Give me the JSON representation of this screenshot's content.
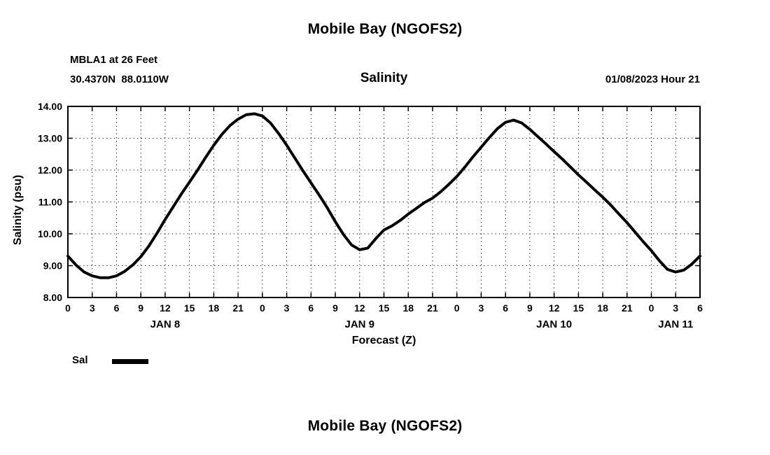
{
  "header": {
    "title": "Mobile Bay (NGOFS2)"
  },
  "footer": {
    "next_chart_title": "Mobile Bay (NGOFS2)"
  },
  "chart_data": {
    "type": "line",
    "title": "Salinity",
    "station": "MBLA1 at 26 Feet",
    "coords": "30.4370N  88.0110W",
    "timestamp": "01/08/2023 Hour 21",
    "xlabel": "Forecast (Z)",
    "ylabel": "Salinity (psu)",
    "xlim": [
      0,
      78
    ],
    "ylim": [
      8,
      14
    ],
    "grid": true,
    "legend_position": "bottom-left",
    "legend": [
      {
        "name": "Sal",
        "color": "#000000",
        "style": "thick-solid"
      }
    ],
    "xticks": [
      0,
      3,
      6,
      9,
      12,
      15,
      18,
      21,
      24,
      27,
      30,
      33,
      36,
      39,
      42,
      45,
      48,
      51,
      54,
      57,
      60,
      63,
      66,
      69,
      72,
      75,
      78
    ],
    "xtick_labels": [
      "0",
      "3",
      "6",
      "9",
      "12",
      "15",
      "18",
      "21",
      "0",
      "3",
      "6",
      "9",
      "12",
      "15",
      "18",
      "21",
      "0",
      "3",
      "6",
      "9",
      "12",
      "15",
      "18",
      "21",
      "0",
      "3",
      "6"
    ],
    "yticks": [
      8,
      9,
      10,
      11,
      12,
      13,
      14
    ],
    "ytick_labels": [
      "8.00",
      "9.00",
      "10.00",
      "11.00",
      "12.00",
      "13.00",
      "14.00"
    ],
    "day_labels": [
      {
        "x": 12,
        "label": "JAN 8"
      },
      {
        "x": 36,
        "label": "JAN 9"
      },
      {
        "x": 60,
        "label": "JAN 10"
      },
      {
        "x": 75,
        "label": "JAN 11"
      }
    ],
    "series": [
      {
        "name": "Sal",
        "color": "#000000",
        "x": [
          0,
          1,
          2,
          3,
          4,
          5,
          6,
          7,
          8,
          9,
          10,
          11,
          12,
          13,
          14,
          15,
          16,
          17,
          18,
          19,
          20,
          21,
          22,
          23,
          24,
          25,
          26,
          27,
          28,
          29,
          30,
          31,
          32,
          33,
          34,
          35,
          36,
          37,
          38,
          39,
          40,
          41,
          42,
          43,
          44,
          45,
          46,
          47,
          48,
          49,
          50,
          51,
          52,
          53,
          54,
          55,
          56,
          57,
          58,
          59,
          60,
          61,
          62,
          63,
          64,
          65,
          66,
          67,
          68,
          69,
          70,
          71,
          72,
          73,
          74,
          75,
          76,
          77,
          78
        ],
        "y": [
          9.3,
          9.02,
          8.8,
          8.68,
          8.62,
          8.62,
          8.68,
          8.82,
          9.02,
          9.28,
          9.62,
          10.02,
          10.45,
          10.85,
          11.25,
          11.62,
          12.0,
          12.4,
          12.78,
          13.12,
          13.4,
          13.6,
          13.74,
          13.77,
          13.7,
          13.48,
          13.15,
          12.78,
          12.38,
          11.98,
          11.6,
          11.22,
          10.82,
          10.38,
          9.98,
          9.65,
          9.5,
          9.55,
          9.85,
          10.12,
          10.25,
          10.42,
          10.62,
          10.8,
          10.98,
          11.12,
          11.32,
          11.55,
          11.8,
          12.1,
          12.42,
          12.72,
          13.02,
          13.3,
          13.5,
          13.57,
          13.48,
          13.28,
          13.05,
          12.82,
          12.58,
          12.35,
          12.1,
          11.85,
          11.62,
          11.38,
          11.15,
          10.9,
          10.62,
          10.35,
          10.05,
          9.75,
          9.47,
          9.15,
          8.88,
          8.8,
          8.86,
          9.05,
          9.3
        ]
      }
    ]
  }
}
